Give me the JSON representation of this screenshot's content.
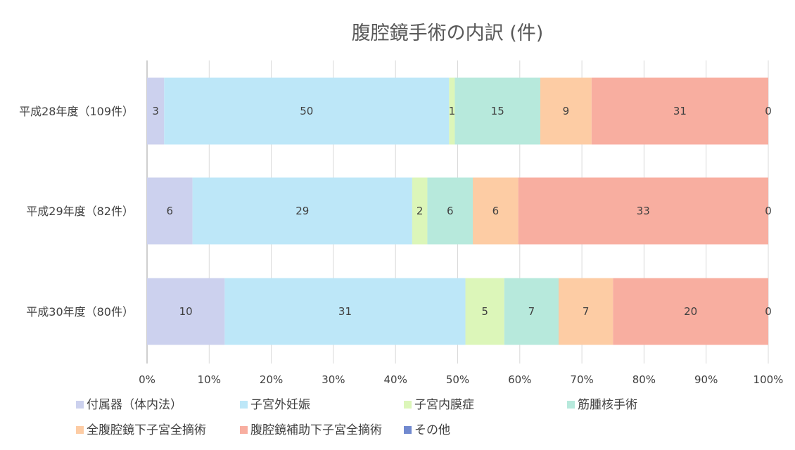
{
  "chart_data": {
    "type": "bar",
    "orientation": "horizontal",
    "stacking": "percent",
    "title": "腹腔鏡手術の内訳 (件)",
    "categories": [
      "平成28年度（109件）",
      "平成29年度（82件）",
      "平成30年度（80件）"
    ],
    "series": [
      {
        "name": "付属器（体内法）",
        "values": [
          3,
          6,
          10
        ],
        "color": "#ccd1ee"
      },
      {
        "name": "子宮外妊娠",
        "values": [
          50,
          29,
          31
        ],
        "color": "#bde7f8"
      },
      {
        "name": "子宮内膜症",
        "values": [
          1,
          2,
          5
        ],
        "color": "#dcf6b9"
      },
      {
        "name": "筋腫核手術",
        "values": [
          15,
          6,
          7
        ],
        "color": "#b7e9dc"
      },
      {
        "name": "全腹腔鏡下子宮全摘術",
        "values": [
          9,
          6,
          7
        ],
        "color": "#fdcca4"
      },
      {
        "name": "腹腔鏡補助下子宮全摘術",
        "values": [
          31,
          33,
          20
        ],
        "color": "#f8aea0"
      },
      {
        "name": "その他",
        "values": [
          0,
          0,
          0
        ],
        "color": "#7189cf"
      }
    ],
    "xlim": [
      0,
      100
    ],
    "x_ticks": [
      "0%",
      "10%",
      "20%",
      "30%",
      "40%",
      "50%",
      "60%",
      "70%",
      "80%",
      "90%",
      "100%"
    ],
    "grid": true,
    "legend_position": "bottom"
  }
}
